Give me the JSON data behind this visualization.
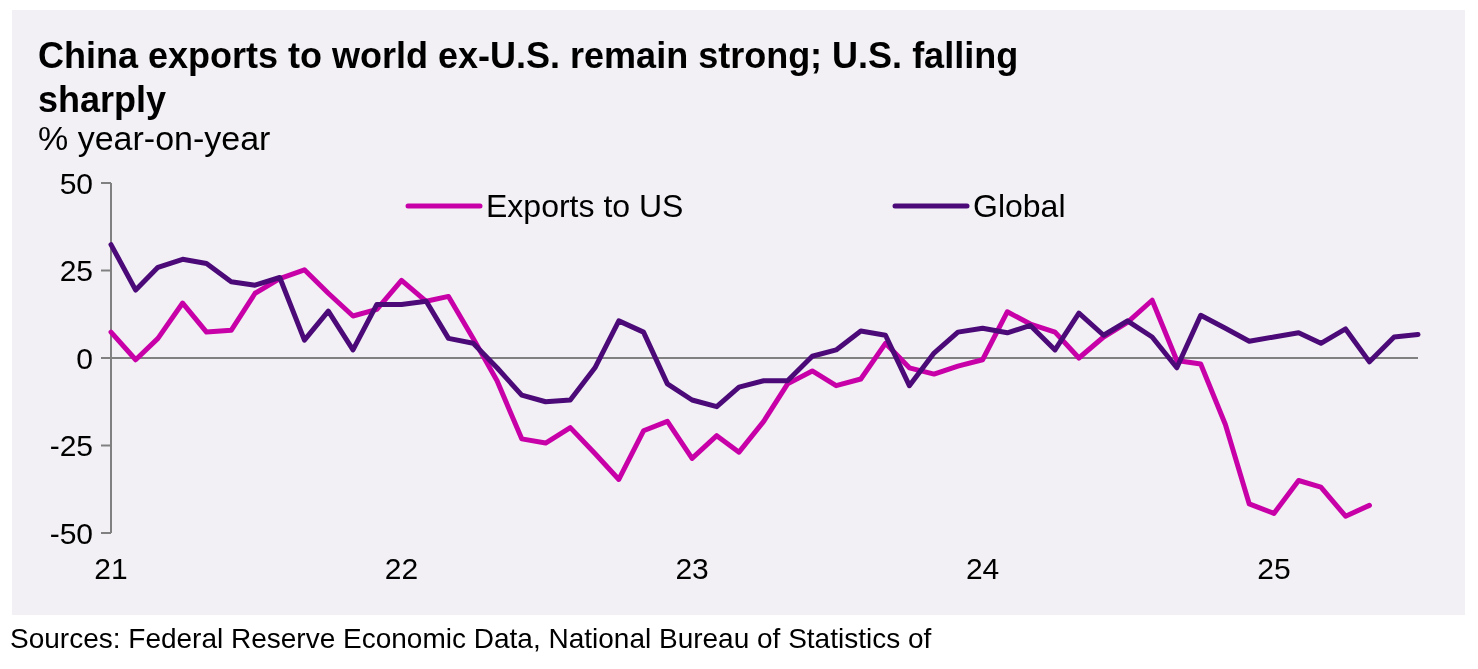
{
  "chart_data": {
    "type": "line",
    "title": "China exports to world ex-U.S. remain strong; U.S. falling sharply",
    "subtitle": "% year-on-year",
    "annotations": [
      "Sources: Federal Reserve Economic Data, National Bureau of Statistics of"
    ],
    "x": [
      "2021-01",
      "2021-02",
      "2021-03",
      "2021-04",
      "2021-05",
      "2021-06",
      "2021-07",
      "2021-08",
      "2021-09",
      "2021-10",
      "2021-11",
      "2021-12",
      "2022-01",
      "2022-02",
      "2022-03",
      "2022-04",
      "2022-05",
      "2022-06",
      "2022-07",
      "2022-08",
      "2022-09",
      "2022-10",
      "2022-11",
      "2022-12",
      "2023-01",
      "2023-02",
      "2023-03",
      "2023-04",
      "2023-05",
      "2023-06",
      "2023-07",
      "2023-08",
      "2023-09",
      "2023-10",
      "2023-11",
      "2023-12",
      "2024-01",
      "2024-02",
      "2024-03",
      "2024-04",
      "2024-05",
      "2024-06",
      "2024-07",
      "2024-08",
      "2024-09",
      "2024-10",
      "2024-11",
      "2024-12",
      "2025-01",
      "2025-02",
      "2025-03",
      "2025-04",
      "2025-05",
      "2025-06",
      "2025-07"
    ],
    "series": [
      {
        "name": "Exports to US",
        "color": "#c800a8",
        "values": [
          7.4,
          -0.5,
          5.6,
          15.7,
          7.4,
          7.9,
          18.5,
          22.7,
          25.2,
          18.5,
          12,
          13.9,
          22.2,
          16.2,
          17.6,
          5.6,
          -6.5,
          -23.1,
          -24.3,
          -19.9,
          -27.3,
          -34.7,
          -20.8,
          -18.1,
          -28.7,
          -22.2,
          -26.9,
          -18.1,
          -7.4,
          -3.7,
          -7.9,
          -6,
          4.2,
          -2.8,
          -4.6,
          -2.3,
          -0.5,
          13.2,
          9.7,
          7.4,
          0,
          6,
          10.2,
          16.5,
          -0.7,
          -1.7,
          -19,
          -41.7,
          -44.4,
          -35,
          -36.9,
          -45.2,
          -42.1,
          null,
          null
        ]
      },
      {
        "name": "Global",
        "color": "#4b0a78",
        "values": [
          32.4,
          19.4,
          25.9,
          28.2,
          27,
          21.8,
          20.8,
          23,
          5.1,
          13.4,
          2.3,
          15.3,
          15.3,
          16.2,
          5.6,
          4.2,
          -2.8,
          -10.6,
          -12.5,
          -12,
          -2.8,
          10.6,
          7.4,
          -7.4,
          -12,
          -13.9,
          -8.3,
          -6.5,
          -6.5,
          0.5,
          2.3,
          7.7,
          6.5,
          -7.9,
          1.4,
          7.4,
          8.5,
          7.2,
          9.3,
          2.3,
          12.8,
          6.5,
          10.6,
          6,
          -2.8,
          12.2,
          8.5,
          4.8,
          6,
          7.2,
          4.2,
          8.3,
          -1.1,
          6,
          6.7
        ]
      }
    ],
    "xlim": [
      "2021-01",
      "2025-07"
    ],
    "xticks": [
      {
        "value": "2021-01",
        "label": "21"
      },
      {
        "value": "2022-01",
        "label": "22"
      },
      {
        "value": "2023-01",
        "label": "23"
      },
      {
        "value": "2024-01",
        "label": "24"
      },
      {
        "value": "2025-01",
        "label": "25"
      }
    ],
    "ylim": [
      -50,
      50
    ],
    "yticks": [
      50,
      25,
      0,
      -25,
      -50
    ],
    "legend": "top",
    "line_style": "solid"
  }
}
